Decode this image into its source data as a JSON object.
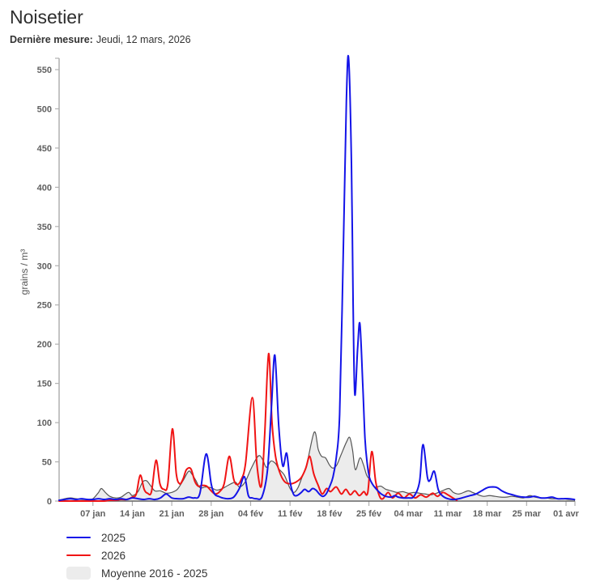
{
  "header": {
    "title": "Noisetier",
    "subtitle_label": "Dernière mesure:",
    "subtitle_value": "Jeudi, 12 mars, 2026"
  },
  "colors": {
    "series_2025": "#1414e8",
    "series_2026": "#f01414",
    "average_fill": "#ececec",
    "average_stroke": "#555555",
    "axis": "#b0b0b0",
    "tick_text": "#606060"
  },
  "chart_data": {
    "type": "line",
    "title": "Noisetier",
    "xlabel": "",
    "ylabel": "grains / m³",
    "ylim": [
      0,
      565
    ],
    "grid": false,
    "legend_position": "bottom-left",
    "y_ticks": [
      0,
      50,
      100,
      150,
      200,
      250,
      300,
      350,
      400,
      450,
      500,
      550
    ],
    "x_tick_days": [
      6,
      13,
      20,
      27,
      34,
      41,
      48,
      55,
      62,
      69,
      76,
      83,
      90
    ],
    "x_tick_labels": [
      "07 jan",
      "14 jan",
      "21 jan",
      "28 jan",
      "04 fév",
      "11 fév",
      "18 fév",
      "25 fév",
      "04 mar",
      "11 mar",
      "18 mar",
      "25 mar",
      "01 avr"
    ],
    "x_units": "days since 01 jan",
    "series": [
      {
        "name": "2025",
        "kind": "line",
        "color": "#1414e8",
        "points": [
          [
            0,
            1
          ],
          [
            1,
            2
          ],
          [
            2,
            3
          ],
          [
            3,
            2
          ],
          [
            4,
            3
          ],
          [
            5,
            2
          ],
          [
            6,
            2
          ],
          [
            7,
            3
          ],
          [
            8,
            2
          ],
          [
            9,
            3
          ],
          [
            10,
            2
          ],
          [
            11,
            3
          ],
          [
            12,
            2
          ],
          [
            13,
            4
          ],
          [
            14,
            3
          ],
          [
            15,
            2
          ],
          [
            16,
            3
          ],
          [
            17,
            2
          ],
          [
            18,
            4
          ],
          [
            19,
            9
          ],
          [
            20,
            4
          ],
          [
            21,
            3
          ],
          [
            22,
            3
          ],
          [
            23,
            5
          ],
          [
            24,
            4
          ],
          [
            25,
            10
          ],
          [
            26.1,
            60
          ],
          [
            27,
            22
          ],
          [
            27.6,
            9
          ],
          [
            28.3,
            6
          ],
          [
            29,
            4
          ],
          [
            30,
            3
          ],
          [
            31,
            5
          ],
          [
            32,
            16
          ],
          [
            32.9,
            31
          ],
          [
            33.6,
            7
          ],
          [
            34.3,
            4
          ],
          [
            35,
            3
          ],
          [
            36,
            5
          ],
          [
            37,
            40
          ],
          [
            37.7,
            120
          ],
          [
            38.3,
            186
          ],
          [
            39,
            95
          ],
          [
            39.7,
            45
          ],
          [
            40.4,
            61
          ],
          [
            41,
            25
          ],
          [
            41.6,
            9
          ],
          [
            42.2,
            7
          ],
          [
            43,
            11
          ],
          [
            43.6,
            15
          ],
          [
            44.3,
            12
          ],
          [
            45,
            16
          ],
          [
            45.6,
            14
          ],
          [
            46.2,
            9
          ],
          [
            46.8,
            6
          ],
          [
            47.4,
            9
          ],
          [
            48,
            18
          ],
          [
            48.6,
            30
          ],
          [
            49.2,
            55
          ],
          [
            49.8,
            110
          ],
          [
            50.4,
            300
          ],
          [
            51,
            510
          ],
          [
            51.4,
            564
          ],
          [
            51.9,
            430
          ],
          [
            52.2,
            250
          ],
          [
            52.5,
            136
          ],
          [
            53,
            195
          ],
          [
            53.4,
            226
          ],
          [
            53.9,
            150
          ],
          [
            54.3,
            80
          ],
          [
            54.7,
            48
          ],
          [
            55.1,
            30
          ],
          [
            55.6,
            22
          ],
          [
            56.1,
            17
          ],
          [
            56.6,
            13
          ],
          [
            57.2,
            9
          ],
          [
            58,
            6
          ],
          [
            59,
            5
          ],
          [
            59.6,
            7
          ],
          [
            60.2,
            5
          ],
          [
            61,
            4
          ],
          [
            62,
            4
          ],
          [
            63,
            6
          ],
          [
            64,
            25
          ],
          [
            64.6,
            72
          ],
          [
            65.4,
            30
          ],
          [
            65.9,
            27
          ],
          [
            66.6,
            38
          ],
          [
            67.3,
            15
          ],
          [
            68,
            7
          ],
          [
            69,
            3
          ],
          [
            70,
            2
          ],
          [
            71,
            3
          ],
          [
            72,
            5
          ],
          [
            73,
            7
          ],
          [
            74,
            9
          ],
          [
            75,
            13
          ],
          [
            76,
            17
          ],
          [
            77,
            18
          ],
          [
            77.8,
            17
          ],
          [
            78.6,
            13
          ],
          [
            79.5,
            10
          ],
          [
            80.5,
            8
          ],
          [
            81.5,
            6
          ],
          [
            82.5,
            5
          ],
          [
            83.5,
            5
          ],
          [
            84.5,
            6
          ],
          [
            85.5,
            4
          ],
          [
            86.5,
            4
          ],
          [
            87.5,
            5
          ],
          [
            88.5,
            3
          ],
          [
            89.5,
            3
          ],
          [
            90.5,
            3
          ],
          [
            91.5,
            2
          ]
        ]
      },
      {
        "name": "2026",
        "kind": "line",
        "color": "#f01414",
        "points": [
          [
            0,
            0
          ],
          [
            3,
            0
          ],
          [
            6,
            0
          ],
          [
            8,
            0
          ],
          [
            9,
            1
          ],
          [
            10,
            1
          ],
          [
            11,
            2
          ],
          [
            12,
            2
          ],
          [
            13,
            5
          ],
          [
            13.7,
            9
          ],
          [
            14.4,
            33
          ],
          [
            15.1,
            15
          ],
          [
            15.7,
            10
          ],
          [
            16.4,
            12
          ],
          [
            17.2,
            52
          ],
          [
            17.9,
            22
          ],
          [
            18.6,
            15
          ],
          [
            19.3,
            22
          ],
          [
            20.1,
            92
          ],
          [
            20.8,
            35
          ],
          [
            21.4,
            22
          ],
          [
            22,
            28
          ],
          [
            22.6,
            40
          ],
          [
            23.4,
            41
          ],
          [
            24.1,
            25
          ],
          [
            24.7,
            19
          ],
          [
            25.4,
            20
          ],
          [
            26.2,
            19
          ],
          [
            27,
            13
          ],
          [
            27.7,
            9
          ],
          [
            28.5,
            12
          ],
          [
            29.3,
            22
          ],
          [
            30.2,
            57
          ],
          [
            31,
            28
          ],
          [
            31.6,
            21
          ],
          [
            32.3,
            27
          ],
          [
            33.1,
            48
          ],
          [
            34.3,
            132
          ],
          [
            35.1,
            48
          ],
          [
            35.9,
            19
          ],
          [
            36.5,
            85
          ],
          [
            37.2,
            188
          ],
          [
            37.8,
            100
          ],
          [
            38.4,
            58
          ],
          [
            39.1,
            38
          ],
          [
            40,
            25
          ],
          [
            41,
            22
          ],
          [
            42,
            24
          ],
          [
            43,
            30
          ],
          [
            43.8,
            42
          ],
          [
            44.5,
            57
          ],
          [
            45.2,
            35
          ],
          [
            46,
            20
          ],
          [
            46.7,
            9
          ],
          [
            47.5,
            16
          ],
          [
            48.2,
            12
          ],
          [
            49.2,
            18
          ],
          [
            50.1,
            9
          ],
          [
            50.9,
            15
          ],
          [
            51.7,
            8
          ],
          [
            52.5,
            13
          ],
          [
            53.3,
            7
          ],
          [
            54.1,
            12
          ],
          [
            54.8,
            11
          ],
          [
            55.5,
            63
          ],
          [
            56.2,
            25
          ],
          [
            56.9,
            6
          ],
          [
            57.5,
            3
          ],
          [
            58.4,
            11
          ],
          [
            59.2,
            4
          ],
          [
            60.2,
            10
          ],
          [
            61.2,
            4
          ],
          [
            62.2,
            9
          ],
          [
            63.2,
            4
          ],
          [
            64.2,
            8
          ],
          [
            65.2,
            5
          ],
          [
            66.3,
            10
          ],
          [
            67.2,
            6
          ],
          [
            68.1,
            11
          ],
          [
            69,
            8
          ],
          [
            69.9,
            4
          ],
          [
            70.6,
            1
          ]
        ]
      },
      {
        "name": "Moyenne 2016 - 2025",
        "kind": "area",
        "color": "#ececec",
        "stroke": "#555555",
        "points": [
          [
            0,
            1
          ],
          [
            1,
            3
          ],
          [
            2,
            4
          ],
          [
            3,
            3
          ],
          [
            4,
            2
          ],
          [
            5,
            2
          ],
          [
            6,
            3
          ],
          [
            7,
            11
          ],
          [
            7.5,
            16
          ],
          [
            8.2,
            11
          ],
          [
            9,
            6
          ],
          [
            10,
            4
          ],
          [
            11,
            5
          ],
          [
            12.3,
            11
          ],
          [
            13,
            7
          ],
          [
            14,
            12
          ],
          [
            14.8,
            24
          ],
          [
            15.5,
            26
          ],
          [
            16.2,
            20
          ],
          [
            17,
            13
          ],
          [
            18,
            13
          ],
          [
            19,
            10
          ],
          [
            20,
            11
          ],
          [
            21,
            15
          ],
          [
            22,
            26
          ],
          [
            23,
            38
          ],
          [
            23.6,
            34
          ],
          [
            24.3,
            26
          ],
          [
            25,
            17
          ],
          [
            26,
            18
          ],
          [
            27,
            17
          ],
          [
            28,
            14
          ],
          [
            29,
            16
          ],
          [
            30,
            20
          ],
          [
            31.3,
            24
          ],
          [
            32,
            18
          ],
          [
            33,
            24
          ],
          [
            34,
            40
          ],
          [
            35,
            54
          ],
          [
            35.6,
            58
          ],
          [
            36.2,
            52
          ],
          [
            36.8,
            43
          ],
          [
            37.6,
            51
          ],
          [
            38.4,
            48
          ],
          [
            39,
            41
          ],
          [
            40,
            33
          ],
          [
            41,
            16
          ],
          [
            41.7,
            11
          ],
          [
            42.4,
            17
          ],
          [
            43,
            28
          ],
          [
            44,
            48
          ],
          [
            45.3,
            88
          ],
          [
            46,
            66
          ],
          [
            46.6,
            57
          ],
          [
            47.3,
            55
          ],
          [
            48,
            46
          ],
          [
            48.6,
            42
          ],
          [
            49.3,
            46
          ],
          [
            50,
            58
          ],
          [
            51,
            75
          ],
          [
            51.6,
            81
          ],
          [
            52.1,
            65
          ],
          [
            52.6,
            40
          ],
          [
            53.4,
            55
          ],
          [
            54,
            47
          ],
          [
            54.6,
            33
          ],
          [
            55.2,
            27
          ],
          [
            56,
            18
          ],
          [
            57.1,
            19
          ],
          [
            58,
            15
          ],
          [
            59,
            13
          ],
          [
            60,
            11
          ],
          [
            61,
            12
          ],
          [
            62,
            10
          ],
          [
            63,
            11
          ],
          [
            64,
            10
          ],
          [
            65,
            9
          ],
          [
            66,
            8
          ],
          [
            67,
            10
          ],
          [
            68,
            13
          ],
          [
            69.2,
            16
          ],
          [
            70,
            11
          ],
          [
            71,
            9
          ],
          [
            72.6,
            13
          ],
          [
            73.4,
            11
          ],
          [
            74.4,
            8
          ],
          [
            75.4,
            6
          ],
          [
            76.4,
            7
          ],
          [
            77.4,
            6
          ],
          [
            78.4,
            5
          ],
          [
            79.4,
            5
          ],
          [
            80.4,
            6
          ],
          [
            81.4,
            5
          ],
          [
            82.4,
            4
          ],
          [
            83.6,
            7
          ],
          [
            84.5,
            5
          ],
          [
            85.5,
            4
          ],
          [
            86.5,
            4
          ],
          [
            87.5,
            3
          ],
          [
            88.5,
            3
          ],
          [
            89.5,
            3
          ],
          [
            90.5,
            2
          ],
          [
            91.5,
            2
          ]
        ]
      }
    ]
  },
  "legend": {
    "items": [
      {
        "label": "2025",
        "swatch": "line",
        "color": "#1414e8"
      },
      {
        "label": "2026",
        "swatch": "line",
        "color": "#f01414"
      },
      {
        "label": "Moyenne 2016 - 2025",
        "swatch": "area",
        "color": "#ececec"
      }
    ]
  }
}
